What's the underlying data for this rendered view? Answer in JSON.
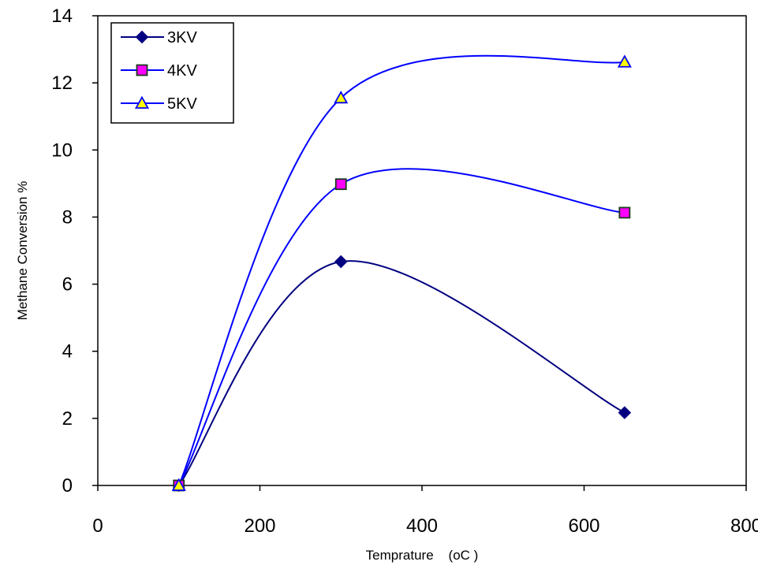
{
  "chart_data": {
    "type": "line",
    "title": "",
    "xlabel": "Temprature    (oC )",
    "ylabel": "Methane Conversion %",
    "xlim": [
      0,
      800
    ],
    "ylim": [
      0,
      14
    ],
    "xticks": [
      0,
      200,
      400,
      600,
      800
    ],
    "yticks": [
      0,
      2,
      4,
      6,
      8,
      10,
      12,
      14
    ],
    "grid": false,
    "legend_position": "top-left",
    "series": [
      {
        "name": "3KV",
        "marker": "diamond",
        "line_color": "#000080",
        "marker_fill": "#000080",
        "marker_stroke": "#000080",
        "x": [
          100,
          300,
          650
        ],
        "y": [
          0,
          6.67,
          2.17
        ]
      },
      {
        "name": "4KV",
        "marker": "square",
        "line_color": "#0000ff",
        "marker_fill": "#ff00ff",
        "marker_stroke": "#1a3a1a",
        "x": [
          100,
          300,
          650
        ],
        "y": [
          0,
          8.98,
          8.13
        ]
      },
      {
        "name": "5KV",
        "marker": "triangle",
        "line_color": "#0000ff",
        "marker_fill": "#ffff00",
        "marker_stroke": "#0000ff",
        "x": [
          100,
          300,
          650
        ],
        "y": [
          0,
          11.55,
          12.62
        ]
      }
    ]
  }
}
